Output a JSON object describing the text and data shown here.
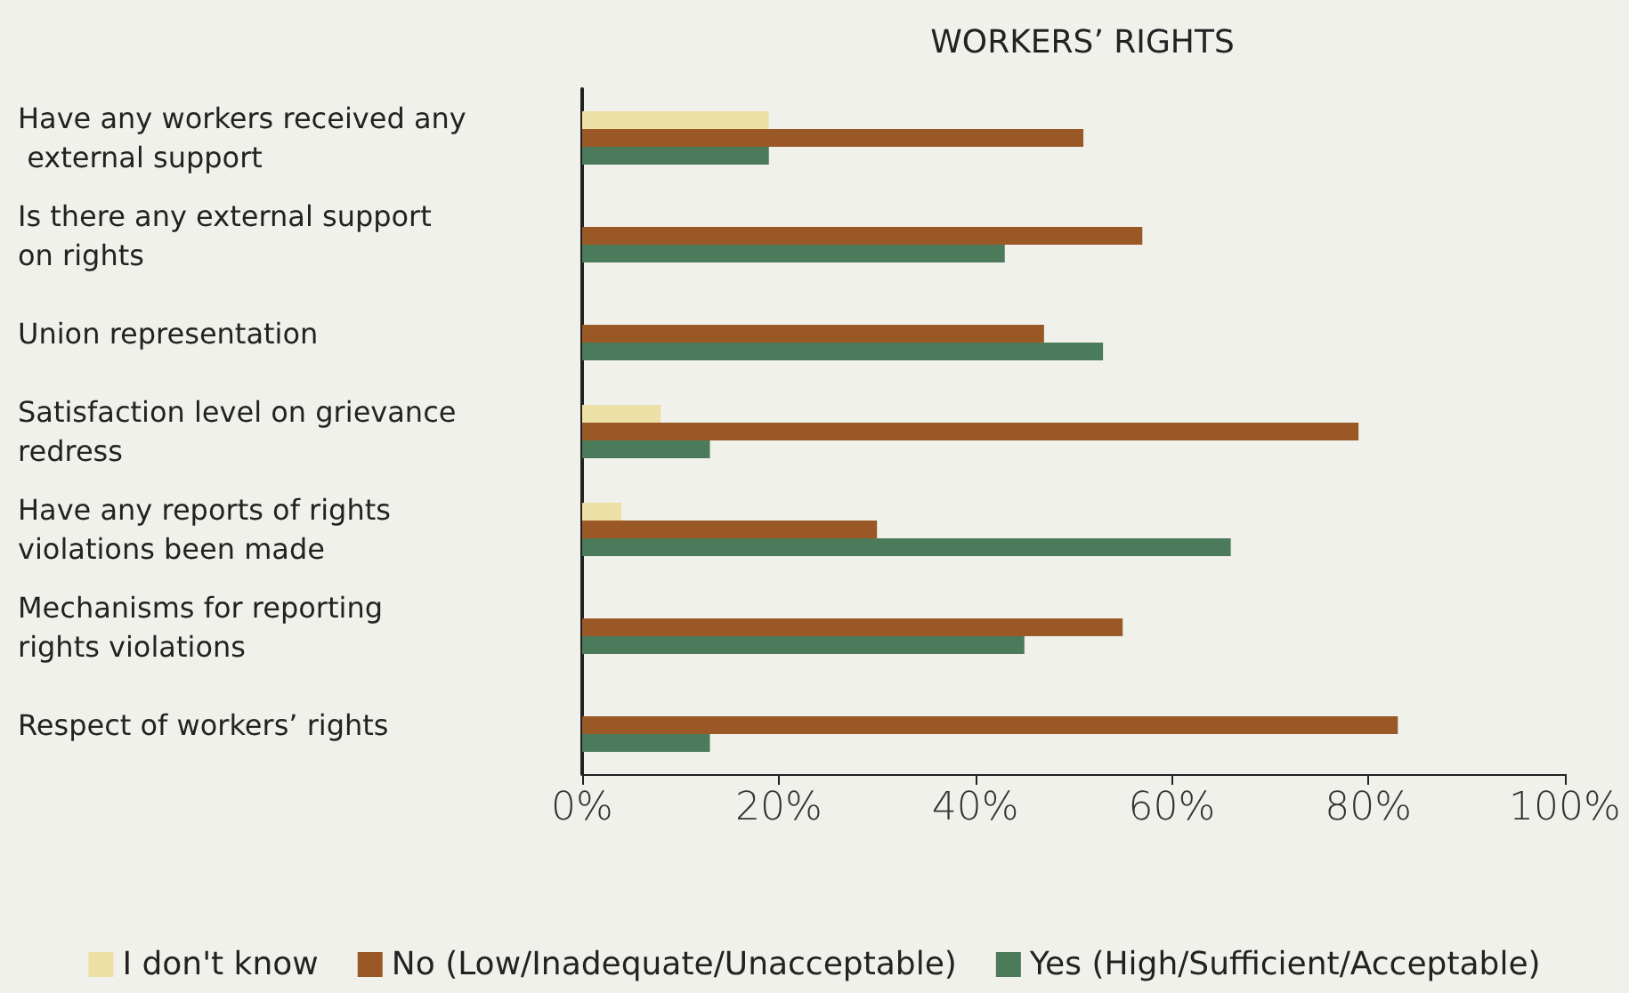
{
  "chart_data": {
    "type": "bar",
    "orientation": "horizontal",
    "title": "WORKERS’ RIGHTS",
    "categories": [
      "Have any workers received any external support",
      "Is there any external support on rights",
      "Union representation",
      "Satisfaction level on grievance redress",
      "Have any reports of rights violations been made",
      "Mechanisms for reporting rights violations",
      "Respect of workers’ rights"
    ],
    "series": [
      {
        "name": "I don't know",
        "color": "#ede0a6",
        "values": [
          19,
          0,
          0,
          8,
          4,
          0,
          0
        ]
      },
      {
        "name": "No (Low/Inadequate/Unacceptable)",
        "color": "#995826",
        "values": [
          51,
          57,
          47,
          79,
          30,
          55,
          83
        ]
      },
      {
        "name": "Yes (High/Sufficient/Acceptable)",
        "color": "#4b7b5a",
        "values": [
          19,
          43,
          53,
          13,
          66,
          45,
          13
        ]
      }
    ],
    "xlim": [
      0,
      100
    ],
    "xticks": [
      {
        "value": 0,
        "label": "0%"
      },
      {
        "value": 20,
        "label": "20%"
      },
      {
        "value": 40,
        "label": "40%"
      },
      {
        "value": 60,
        "label": "60%"
      },
      {
        "value": 80,
        "label": "80%"
      },
      {
        "value": 100,
        "label": "100%"
      }
    ],
    "grid": false,
    "legend": "bottom"
  }
}
